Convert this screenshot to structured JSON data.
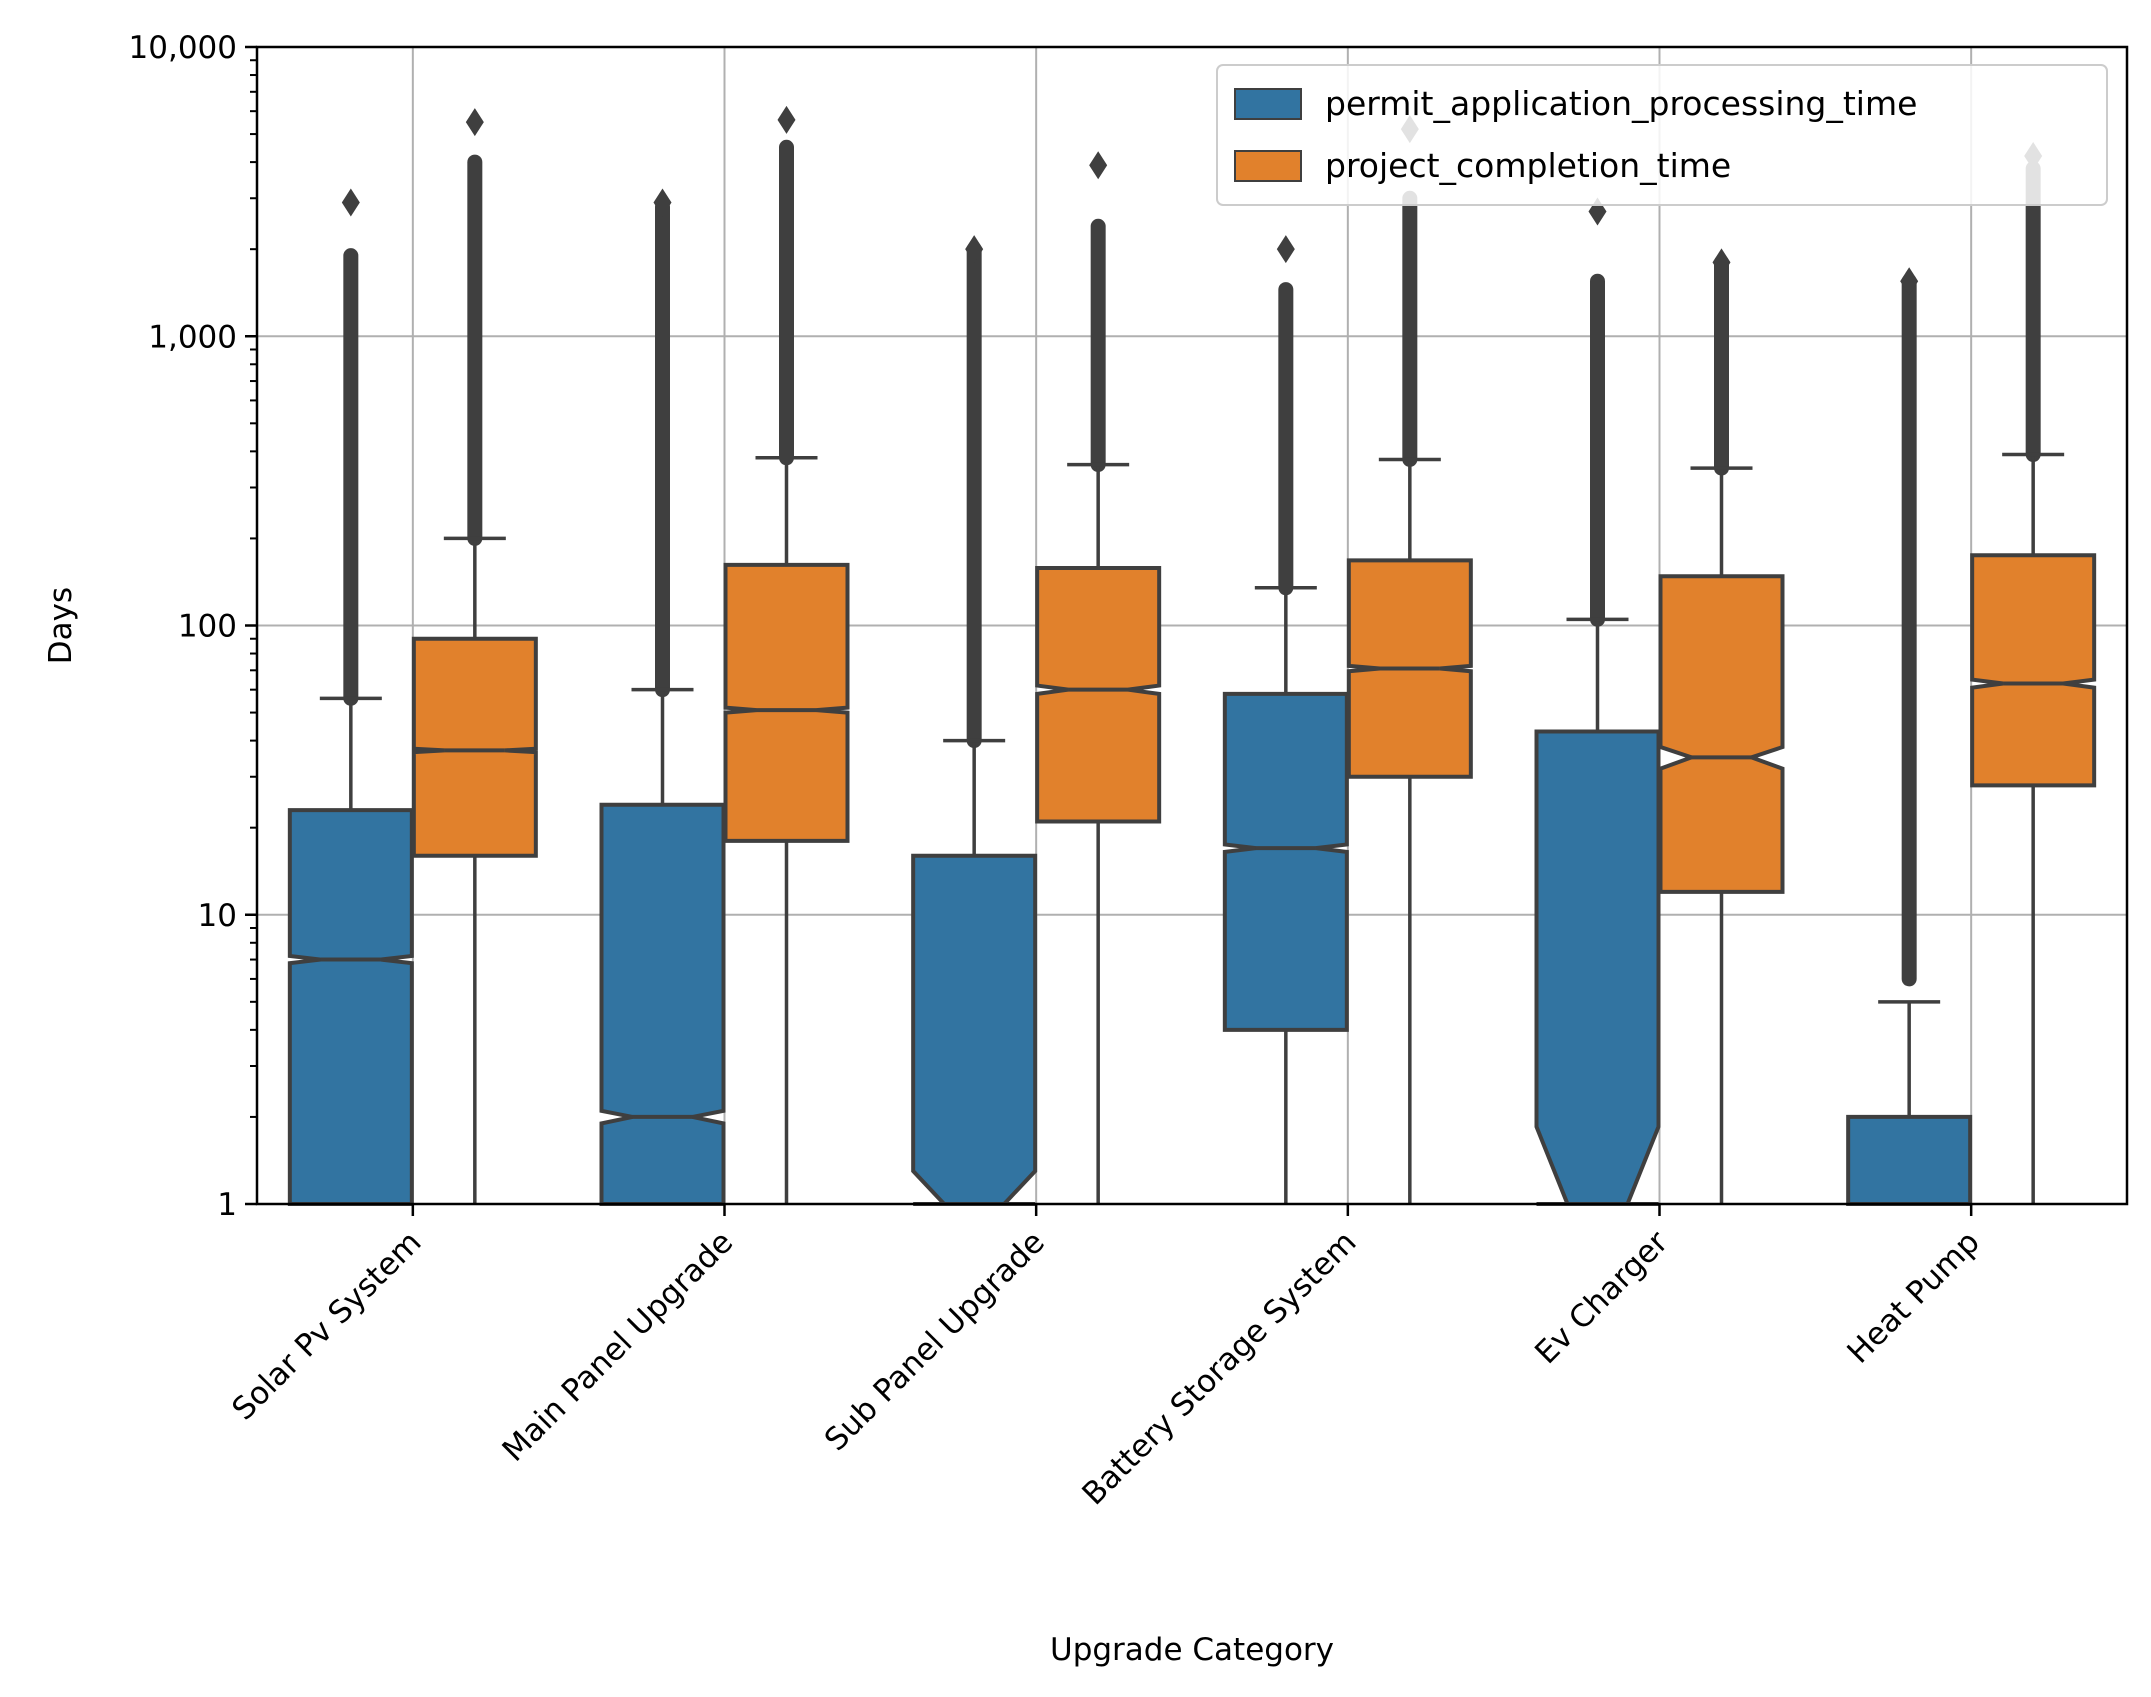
{
  "chart_data": {
    "type": "box",
    "xlabel": "Upgrade Category",
    "ylabel": "Days",
    "yscale": "log",
    "ylim": [
      1,
      10000
    ],
    "yticks": [
      1,
      10,
      100,
      1000,
      10000
    ],
    "ytick_labels": [
      "1",
      "10",
      "100",
      "1,000",
      "10,000"
    ],
    "grid": true,
    "legend_position": "top-right",
    "notched": true,
    "categories": [
      "Solar Pv System",
      "Main Panel Upgrade",
      "Sub Panel Upgrade",
      "Battery Storage System",
      "Ev Charger",
      "Heat Pump"
    ],
    "series": [
      {
        "name": "permit_application_processing_time",
        "color": "#3274a1",
        "boxes": [
          {
            "q1": 1,
            "median": 7,
            "q3": 23,
            "whisker_low": 1,
            "whisker_high": 56,
            "notch_low": 6.8,
            "notch_high": 7.2,
            "flier_min": 56,
            "flier_max": 1900,
            "flier_top": 2900
          },
          {
            "q1": 1,
            "median": 2,
            "q3": 24,
            "whisker_low": 1,
            "whisker_high": 60,
            "notch_low": 1.9,
            "notch_high": 2.1,
            "flier_min": 60,
            "flier_max": 2800,
            "flier_top": 2900
          },
          {
            "q1": 1,
            "median": 1,
            "q3": 16,
            "whisker_low": 1,
            "whisker_high": 40,
            "notch_low": 0.75,
            "notch_high": 1.3,
            "flier_min": 40,
            "flier_max": 2000,
            "flier_top": 2000
          },
          {
            "q1": 4,
            "median": 17,
            "q3": 58,
            "whisker_low": 1,
            "whisker_high": 135,
            "notch_low": 16.5,
            "notch_high": 17.5,
            "flier_min": 135,
            "flier_max": 1450,
            "flier_top": 2000
          },
          {
            "q1": 1,
            "median": 1,
            "q3": 43,
            "whisker_low": 1,
            "whisker_high": 105,
            "notch_low": 0.5,
            "notch_high": 1.85,
            "flier_min": 105,
            "flier_max": 1550,
            "flier_top": 2700
          },
          {
            "q1": 1,
            "median": 1,
            "q3": 2,
            "whisker_low": 1,
            "whisker_high": 5,
            "notch_low": 1,
            "notch_high": 1,
            "flier_min": 6,
            "flier_max": 1550,
            "flier_top": 1550
          }
        ]
      },
      {
        "name": "project_completion_time",
        "color": "#e1812c",
        "boxes": [
          {
            "q1": 16,
            "median": 37,
            "q3": 90,
            "whisker_low": 1,
            "whisker_high": 200,
            "notch_low": 36.5,
            "notch_high": 37.5,
            "flier_min": 200,
            "flier_max": 4000,
            "flier_top": 5500
          },
          {
            "q1": 18,
            "median": 51,
            "q3": 162,
            "whisker_low": 1,
            "whisker_high": 380,
            "notch_low": 50,
            "notch_high": 52,
            "flier_min": 380,
            "flier_max": 4500,
            "flier_top": 5600
          },
          {
            "q1": 21,
            "median": 60,
            "q3": 158,
            "whisker_low": 1,
            "whisker_high": 360,
            "notch_low": 58,
            "notch_high": 62,
            "flier_min": 360,
            "flier_max": 2400,
            "flier_top": 3900
          },
          {
            "q1": 30,
            "median": 71,
            "q3": 168,
            "whisker_low": 1,
            "whisker_high": 375,
            "notch_low": 69.5,
            "notch_high": 72.5,
            "flier_min": 375,
            "flier_max": 3000,
            "flier_top": 5200
          },
          {
            "q1": 12,
            "median": 35,
            "q3": 148,
            "whisker_low": 1,
            "whisker_high": 350,
            "notch_low": 32,
            "notch_high": 38,
            "flier_min": 350,
            "flier_max": 1800,
            "flier_top": 1800
          },
          {
            "q1": 28,
            "median": 63,
            "q3": 175,
            "whisker_low": 1,
            "whisker_high": 390,
            "notch_low": 61,
            "notch_high": 65,
            "flier_min": 390,
            "flier_max": 3800,
            "flier_top": 4200
          }
        ]
      }
    ]
  }
}
